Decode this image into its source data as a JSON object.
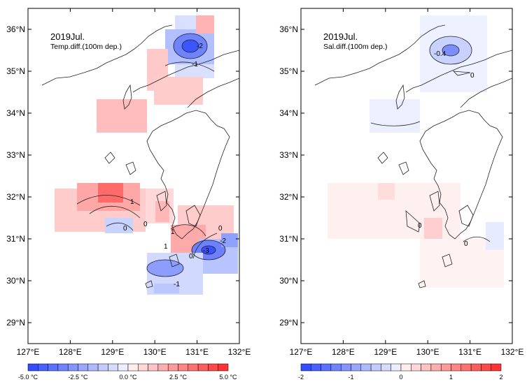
{
  "panels": [
    {
      "id": "temp",
      "title_line1": "2019Jul.",
      "title_line2": "Temp.diff.(100m dep.)",
      "contour_labels": [
        "-2",
        "-1",
        "1",
        "0",
        "0",
        "1",
        "0",
        "1",
        "0",
        "-3",
        "-2",
        "-1"
      ],
      "colorbar": {
        "tick_labels": [
          "-5.0 °C",
          "-2.5 °C",
          "0.0 °C",
          "2.5 °C",
          "5.0 °C"
        ],
        "range": [
          -5,
          5
        ],
        "levels": 20
      }
    },
    {
      "id": "sal",
      "title_line1": "2019Jul.",
      "title_line2": "Sal.diff.(100m dep.)",
      "contour_labels": [
        "-0.4",
        "0",
        "0",
        "0"
      ],
      "colorbar": {
        "tick_labels": [
          "-2",
          "-1",
          "0",
          "1",
          "2"
        ],
        "range": [
          -2,
          2
        ],
        "levels": 20
      }
    }
  ],
  "axes": {
    "lon_labels": [
      "127°E",
      "128°E",
      "129°E",
      "130°E",
      "131°E",
      "132°E"
    ],
    "lat_labels": [
      "36°N",
      "35°N",
      "34°N",
      "33°N",
      "32°N",
      "31°N",
      "30°N",
      "29°N"
    ],
    "lon_range": [
      127,
      132
    ],
    "lat_range": [
      28.5,
      36.5
    ]
  },
  "colors": {
    "cold": "#1f3dff",
    "neutral": "#ffffff",
    "warm": "#ff2020"
  }
}
